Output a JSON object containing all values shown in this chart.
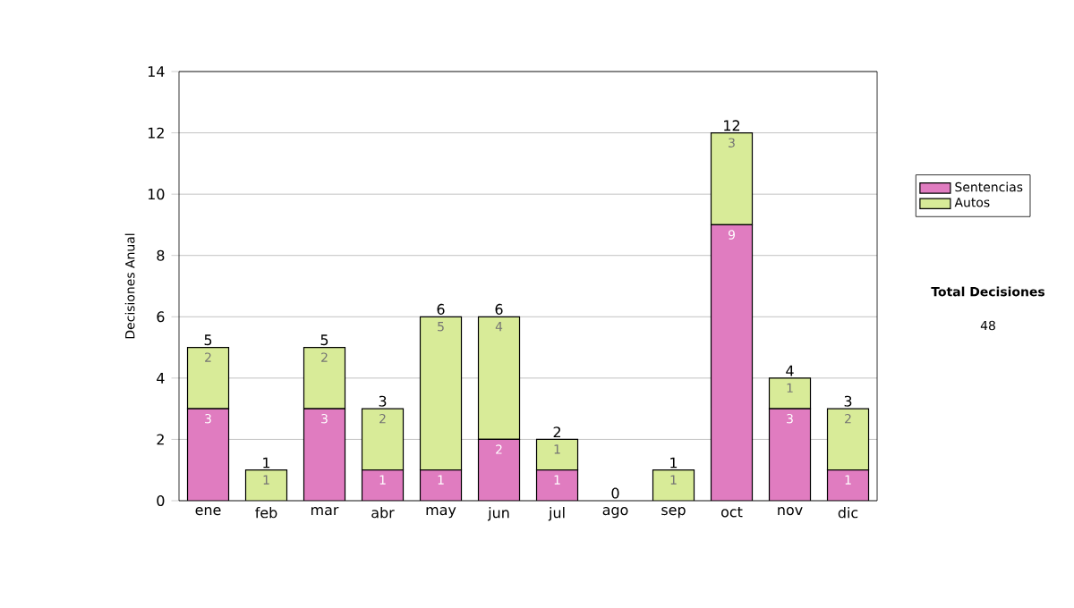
{
  "chart_data": {
    "type": "bar",
    "stacked": true,
    "ylabel": "Decisiones Anual",
    "categories": [
      "ene",
      "feb",
      "mar",
      "abr",
      "may",
      "jun",
      "jul",
      "ago",
      "sep",
      "oct",
      "nov",
      "dic"
    ],
    "series": [
      {
        "name": "Sentencias",
        "color": "#e07cc0",
        "values": [
          3,
          0,
          3,
          1,
          1,
          2,
          1,
          0,
          0,
          9,
          3,
          1
        ],
        "value_labels": [
          "3",
          null,
          "3",
          "1",
          "1",
          "2",
          "1",
          null,
          null,
          "9",
          "3",
          "1"
        ]
      },
      {
        "name": "Autos",
        "color": "#d8eb98",
        "values": [
          2,
          1,
          2,
          2,
          5,
          4,
          1,
          0,
          1,
          3,
          1,
          2
        ],
        "value_labels": [
          "2",
          "1",
          "2",
          "2",
          "5",
          "4",
          "1",
          null,
          "1",
          "3",
          "1",
          "2"
        ]
      }
    ],
    "totals": [
      "5",
      "1",
      "5",
      "3",
      "6",
      "6",
      "2",
      "0",
      "1",
      "12",
      "4",
      "3"
    ],
    "ylim": [
      0,
      14
    ],
    "yticks": [
      0,
      2,
      4,
      6,
      8,
      10,
      12,
      14
    ],
    "grid": "y",
    "legend": "right",
    "annotations": [
      "Total Decisiones",
      "48"
    ]
  }
}
